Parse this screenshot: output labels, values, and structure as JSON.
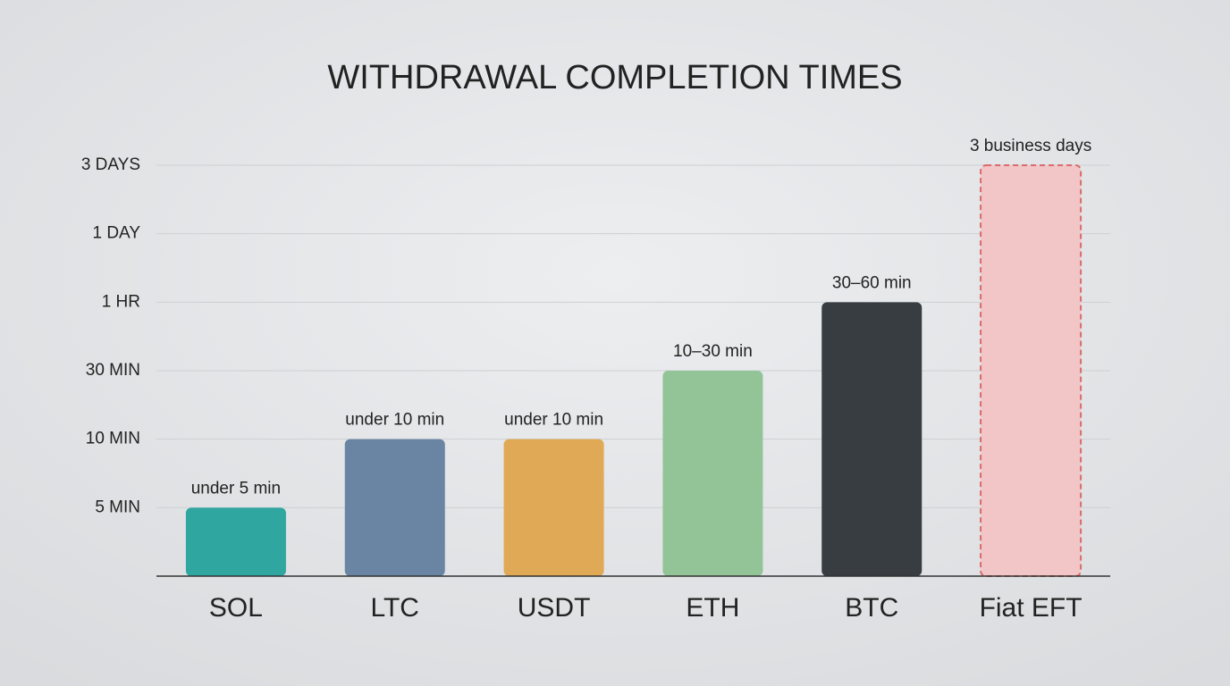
{
  "chart_data": {
    "type": "bar",
    "title": "WITHDRAWAL COMPLETION TIMES",
    "categories": [
      "SOL",
      "LTC",
      "USDT",
      "ETH",
      "BTC",
      "Fiat EFT"
    ],
    "values": [
      5,
      10,
      10,
      30,
      60,
      4320
    ],
    "value_labels": [
      "under 5 min",
      "under 10 min",
      "under 10 min",
      "10–30 min",
      "30–60 min",
      "3 business days"
    ],
    "colors": [
      "#2fa6a0",
      "#6a84a3",
      "#dfa955",
      "#93c497",
      "#373d41",
      "#f2c6c6"
    ],
    "bar_styles": [
      "solid",
      "solid",
      "solid",
      "solid",
      "solid",
      "dashed"
    ],
    "ylim": [
      0,
      4320
    ],
    "yticks": [
      {
        "value": 5,
        "label": "5 MIN"
      },
      {
        "value": 10,
        "label": "10 MIN"
      },
      {
        "value": 30,
        "label": "30 MIN"
      },
      {
        "value": 60,
        "label": "1 HR"
      },
      {
        "value": 1440,
        "label": "1 DAY"
      },
      {
        "value": 4320,
        "label": "3 DAYS"
      }
    ],
    "grid": true
  }
}
